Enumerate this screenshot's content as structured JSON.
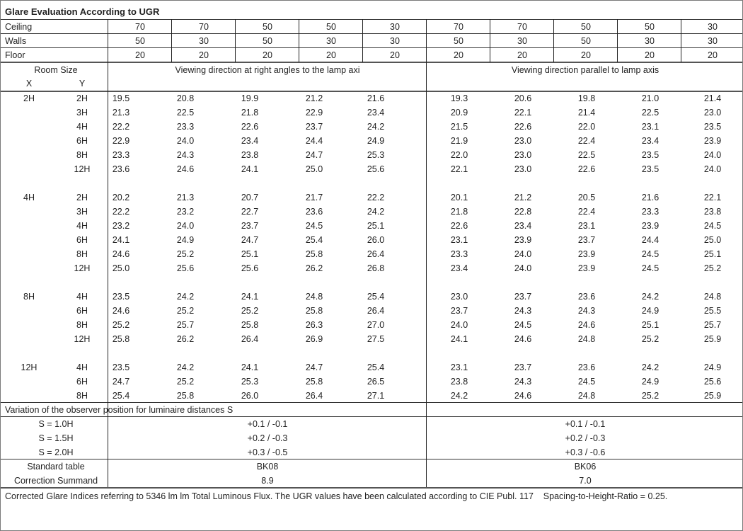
{
  "title": "Glare Evaluation According to UGR",
  "reflectances": {
    "ceiling": {
      "label": "Ceiling",
      "values": [
        "70",
        "70",
        "50",
        "50",
        "30",
        "70",
        "70",
        "50",
        "50",
        "30"
      ]
    },
    "walls": {
      "label": "Walls",
      "values": [
        "50",
        "30",
        "50",
        "30",
        "30",
        "50",
        "30",
        "50",
        "30",
        "30"
      ]
    },
    "floor": {
      "label": "Floor",
      "values": [
        "20",
        "20",
        "20",
        "20",
        "20",
        "20",
        "20",
        "20",
        "20",
        "20"
      ]
    }
  },
  "room_size": {
    "label": "Room Size",
    "x_label": "X",
    "y_label": "Y"
  },
  "directions": {
    "perpendicular": "Viewing direction at right angles to the lamp axi",
    "parallel": "Viewing direction parallel to lamp axis"
  },
  "blocks": [
    {
      "x": "2H",
      "rows": [
        {
          "y": "2H",
          "perp": [
            "19.5",
            "20.8",
            "19.9",
            "21.2",
            "21.6"
          ],
          "par": [
            "19.3",
            "20.6",
            "19.8",
            "21.0",
            "21.4"
          ]
        },
        {
          "y": "3H",
          "perp": [
            "21.3",
            "22.5",
            "21.8",
            "22.9",
            "23.4"
          ],
          "par": [
            "20.9",
            "22.1",
            "21.4",
            "22.5",
            "23.0"
          ]
        },
        {
          "y": "4H",
          "perp": [
            "22.2",
            "23.3",
            "22.6",
            "23.7",
            "24.2"
          ],
          "par": [
            "21.5",
            "22.6",
            "22.0",
            "23.1",
            "23.5"
          ]
        },
        {
          "y": "6H",
          "perp": [
            "22.9",
            "24.0",
            "23.4",
            "24.4",
            "24.9"
          ],
          "par": [
            "21.9",
            "23.0",
            "22.4",
            "23.4",
            "23.9"
          ]
        },
        {
          "y": "8H",
          "perp": [
            "23.3",
            "24.3",
            "23.8",
            "24.7",
            "25.3"
          ],
          "par": [
            "22.0",
            "23.0",
            "22.5",
            "23.5",
            "24.0"
          ]
        },
        {
          "y": "12H",
          "perp": [
            "23.6",
            "24.6",
            "24.1",
            "25.0",
            "25.6"
          ],
          "par": [
            "22.1",
            "23.0",
            "22.6",
            "23.5",
            "24.0"
          ]
        }
      ]
    },
    {
      "x": "4H",
      "rows": [
        {
          "y": "2H",
          "perp": [
            "20.2",
            "21.3",
            "20.7",
            "21.7",
            "22.2"
          ],
          "par": [
            "20.1",
            "21.2",
            "20.5",
            "21.6",
            "22.1"
          ]
        },
        {
          "y": "3H",
          "perp": [
            "22.2",
            "23.2",
            "22.7",
            "23.6",
            "24.2"
          ],
          "par": [
            "21.8",
            "22.8",
            "22.4",
            "23.3",
            "23.8"
          ]
        },
        {
          "y": "4H",
          "perp": [
            "23.2",
            "24.0",
            "23.7",
            "24.5",
            "25.1"
          ],
          "par": [
            "22.6",
            "23.4",
            "23.1",
            "23.9",
            "24.5"
          ]
        },
        {
          "y": "6H",
          "perp": [
            "24.1",
            "24.9",
            "24.7",
            "25.4",
            "26.0"
          ],
          "par": [
            "23.1",
            "23.9",
            "23.7",
            "24.4",
            "25.0"
          ]
        },
        {
          "y": "8H",
          "perp": [
            "24.6",
            "25.2",
            "25.1",
            "25.8",
            "26.4"
          ],
          "par": [
            "23.3",
            "24.0",
            "23.9",
            "24.5",
            "25.1"
          ]
        },
        {
          "y": "12H",
          "perp": [
            "25.0",
            "25.6",
            "25.6",
            "26.2",
            "26.8"
          ],
          "par": [
            "23.4",
            "24.0",
            "23.9",
            "24.5",
            "25.2"
          ]
        }
      ]
    },
    {
      "x": "8H",
      "rows": [
        {
          "y": "4H",
          "perp": [
            "23.5",
            "24.2",
            "24.1",
            "24.8",
            "25.4"
          ],
          "par": [
            "23.0",
            "23.7",
            "23.6",
            "24.2",
            "24.8"
          ]
        },
        {
          "y": "6H",
          "perp": [
            "24.6",
            "25.2",
            "25.2",
            "25.8",
            "26.4"
          ],
          "par": [
            "23.7",
            "24.3",
            "24.3",
            "24.9",
            "25.5"
          ]
        },
        {
          "y": "8H",
          "perp": [
            "25.2",
            "25.7",
            "25.8",
            "26.3",
            "27.0"
          ],
          "par": [
            "24.0",
            "24.5",
            "24.6",
            "25.1",
            "25.7"
          ]
        },
        {
          "y": "12H",
          "perp": [
            "25.8",
            "26.2",
            "26.4",
            "26.9",
            "27.5"
          ],
          "par": [
            "24.1",
            "24.6",
            "24.8",
            "25.2",
            "25.9"
          ]
        }
      ]
    },
    {
      "x": "12H",
      "rows": [
        {
          "y": "4H",
          "perp": [
            "23.5",
            "24.2",
            "24.1",
            "24.7",
            "25.4"
          ],
          "par": [
            "23.1",
            "23.7",
            "23.6",
            "24.2",
            "24.9"
          ]
        },
        {
          "y": "6H",
          "perp": [
            "24.7",
            "25.2",
            "25.3",
            "25.8",
            "26.5"
          ],
          "par": [
            "23.8",
            "24.3",
            "24.5",
            "24.9",
            "25.6"
          ]
        },
        {
          "y": "8H",
          "perp": [
            "25.4",
            "25.8",
            "26.0",
            "26.4",
            "27.1"
          ],
          "par": [
            "24.2",
            "24.6",
            "24.8",
            "25.2",
            "25.9"
          ]
        }
      ]
    }
  ],
  "variation": {
    "label": "Variation of the observer position for luminaire distances S",
    "rows": [
      {
        "s": "S = 1.0H",
        "perp": "+0.1 / -0.1",
        "par": "+0.1 / -0.1"
      },
      {
        "s": "S = 1.5H",
        "perp": "+0.2 / -0.3",
        "par": "+0.2 / -0.3"
      },
      {
        "s": "S = 2.0H",
        "perp": "+0.3 / -0.5",
        "par": "+0.3 / -0.6"
      }
    ]
  },
  "standard_table": {
    "label": "Standard table",
    "perp": "BK08",
    "par": "BK06"
  },
  "correction_summand": {
    "label": "Correction Summand",
    "perp": "8.9",
    "par": "7.0"
  },
  "footnote": "Corrected Glare Indices referring to 5346 lm lm Total Luminous Flux. The UGR values have been calculated according to CIE Publ. 117    Spacing-to-Height-Ratio = 0.25."
}
